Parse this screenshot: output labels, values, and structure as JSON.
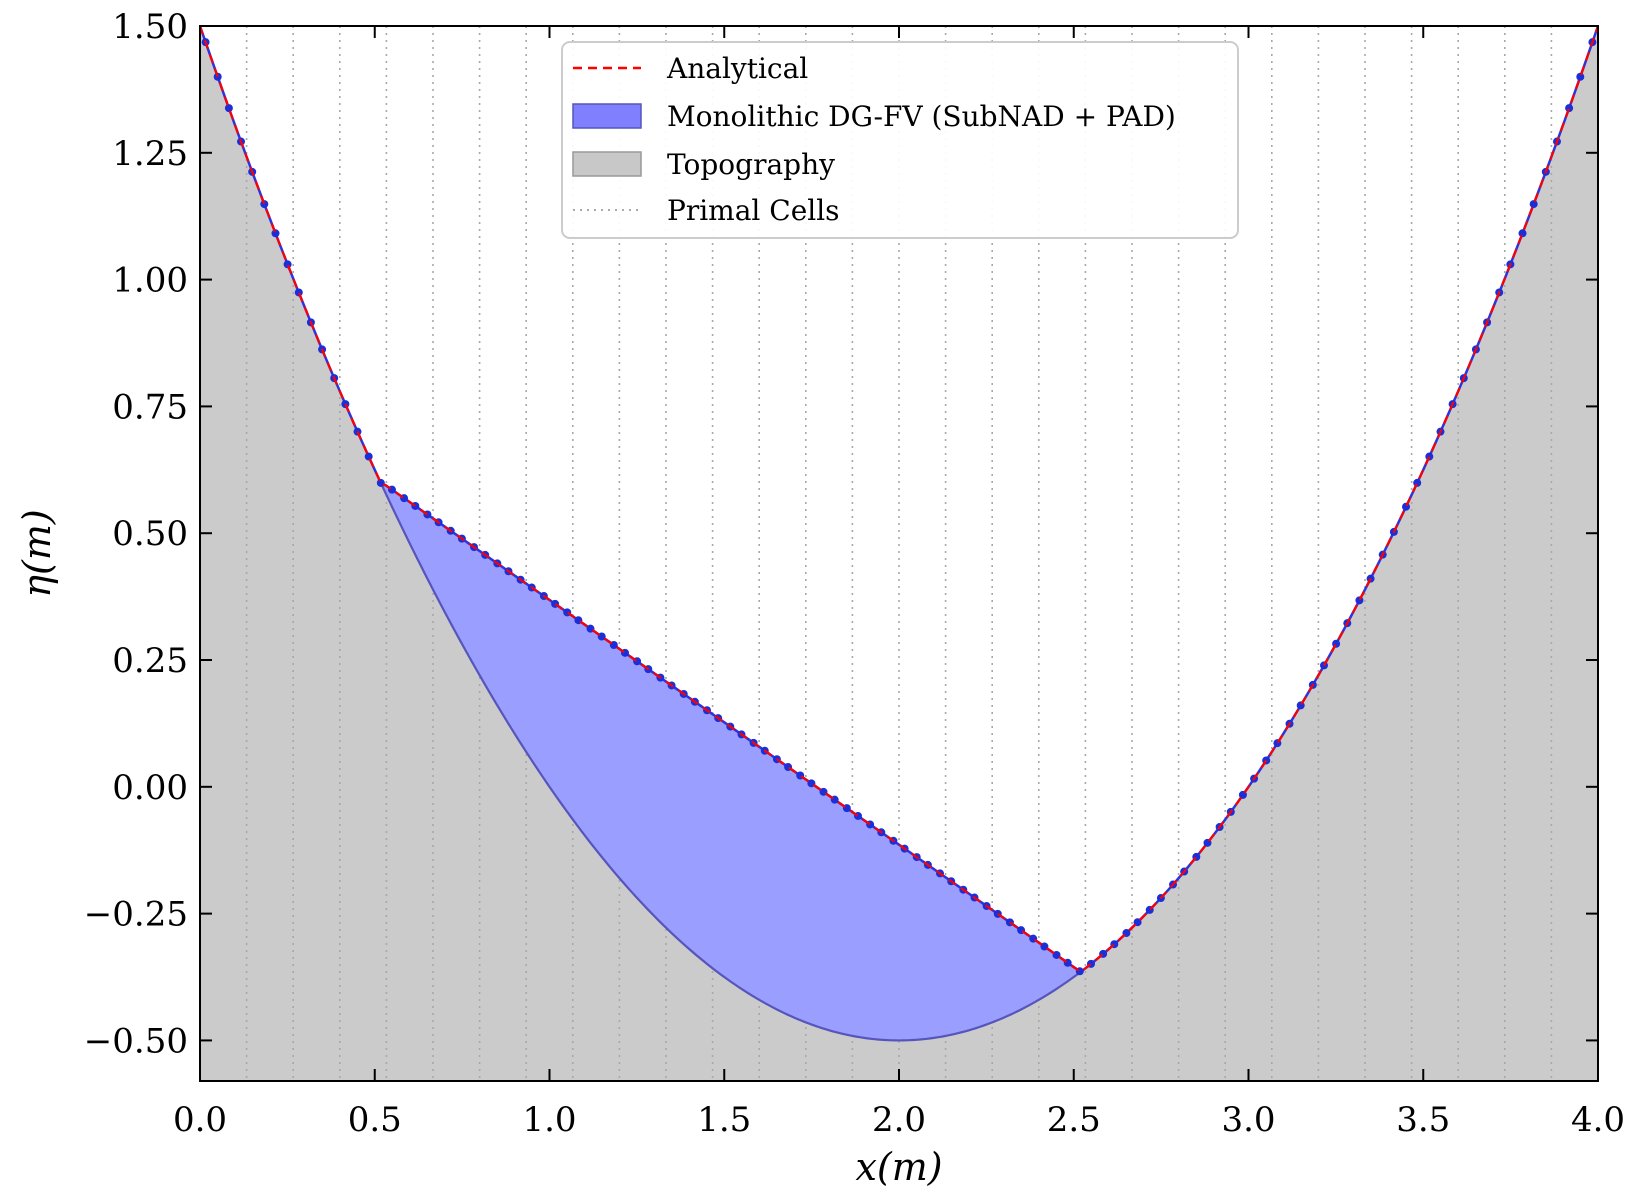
{
  "chart_data": {
    "type": "area",
    "xlabel": "x(m)",
    "ylabel": "η(m)",
    "xlim": [
      0.0,
      4.0
    ],
    "ylim": [
      -0.58,
      1.5
    ],
    "xticks": [
      "0.0",
      "0.5",
      "1.0",
      "1.5",
      "2.0",
      "2.5",
      "3.0",
      "3.5",
      "4.0"
    ],
    "yticks": [
      "1.50",
      "1.25",
      "1.00",
      "0.75",
      "0.50",
      "0.25",
      "0.00",
      "−0.25",
      "−0.50"
    ],
    "xtick_values": [
      0,
      0.5,
      1.0,
      1.5,
      2.0,
      2.5,
      3.0,
      3.5,
      4.0
    ],
    "ytick_values": [
      1.5,
      1.25,
      1.0,
      0.75,
      0.5,
      0.25,
      0.0,
      -0.25,
      -0.5
    ],
    "grid": false,
    "legend_placement": "top-center",
    "legend": [
      {
        "label": "Analytical",
        "kind": "dashed-line",
        "color": "#ff0000"
      },
      {
        "label": "Monolithic DG-FV (SubNAD + PAD)",
        "kind": "patch",
        "color": "#8080ff"
      },
      {
        "label": "Topography",
        "kind": "patch",
        "color": "#c8c8c8"
      },
      {
        "label": "Primal Cells",
        "kind": "dotted-line",
        "color": "#aaaaaa"
      }
    ],
    "topography": {
      "description_formula": "z = 0.5*(x-2)^2 - 0.5",
      "x": [
        0.0,
        0.5,
        1.0,
        1.5,
        2.0,
        2.5,
        3.0,
        3.5,
        4.0
      ],
      "y": [
        1.5,
        0.625,
        0.0,
        -0.375,
        -0.5,
        -0.375,
        0.0,
        0.625,
        1.5
      ]
    },
    "free_surface": {
      "x": [
        0.0,
        0.52,
        1.0,
        1.5,
        2.0,
        2.52
      ],
      "y": [
        1.5,
        0.6,
        0.38,
        0.13,
        -0.11,
        -0.365
      ]
    },
    "wet_region_x": [
      0.52,
      2.52
    ],
    "primal_cells_count": 30,
    "colors": {
      "topography": "#cbcbcb",
      "water_fill": "#9a9eff",
      "water_edge": "#5555bb",
      "analytical": "#ff0000",
      "numerical_line": "#2a35e0",
      "numerical_points": "#1a2fd8",
      "cell_lines": "#a8a8a8"
    }
  }
}
